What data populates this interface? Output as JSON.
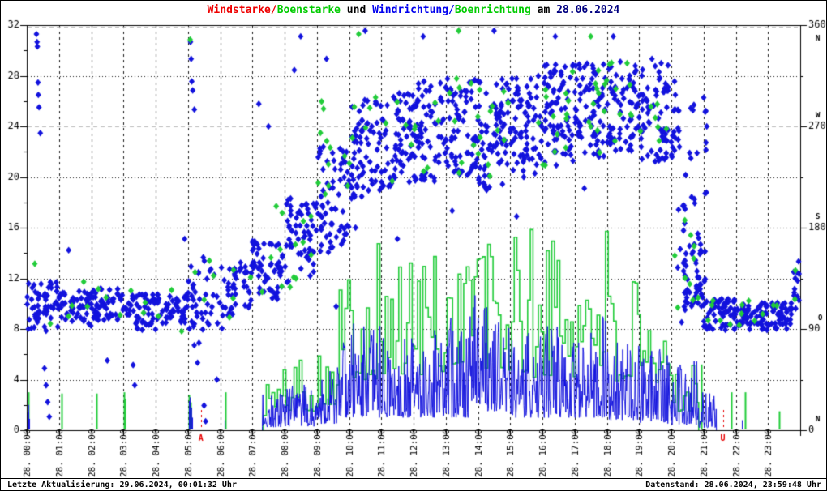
{
  "title": {
    "windstarke": "Windstarke/",
    "boenstarke": "Boenstarke",
    "und": " und ",
    "windrichtung": "Windrichtung/",
    "boenrichtung": "Boenrichtung",
    "am": " am ",
    "date": "28.06.2024"
  },
  "footer": {
    "last_update": "Letzte Aktualisierung: 29.06.2024, 00:01:32 Uhr",
    "data_state": "Datenstand: 28.06.2024, 23:59:48 Uhr"
  },
  "colors": {
    "wind_blue": "#1212dd",
    "gust_green": "#22cc3a",
    "marker_red": "#e60000",
    "title_red": "#ee0000",
    "title_green": "#00cc00",
    "title_blue": "#0000ee",
    "title_date": "#000080",
    "grid_dark": "#1a1a1a",
    "grid_light": "#bbbbbb",
    "frame_black": "#000000"
  },
  "chart_data": {
    "type": "line+scatter",
    "title": "Windstarke/Boenstarke und Windrichtung/Boenrichtung am 28.06.2024",
    "x_axis": {
      "hours": 24,
      "labels": [
        "28. 00:00",
        "28. 01:00",
        "28. 02:00",
        "28. 03:00",
        "28. 04:00",
        "28. 05:00",
        "28. 06:00",
        "28. 07:00",
        "28. 08:00",
        "28. 09:00",
        "28. 10:00",
        "28. 11:00",
        "28. 12:00",
        "28. 13:00",
        "28. 14:00",
        "28. 15:00",
        "28. 16:00",
        "28. 17:00",
        "28. 18:00",
        "28. 19:00",
        "28. 20:00",
        "28. 21:00",
        "28. 22:00",
        "28. 23:00"
      ]
    },
    "y_left": {
      "min": 0,
      "max": 32,
      "ticks": [
        0,
        4,
        8,
        12,
        16,
        20,
        24,
        28,
        32
      ]
    },
    "y_right": {
      "min": 0,
      "max": 360,
      "ticks": [
        0,
        90,
        180,
        270,
        360
      ],
      "letters": [
        "N",
        "O",
        "S",
        "W",
        "N"
      ]
    },
    "sun_markers": [
      {
        "label": "A",
        "hour": 5.4
      },
      {
        "label": "U",
        "hour": 21.6
      }
    ],
    "series": {
      "wind_speed": {
        "name": "Windstarke",
        "style": "spiky-line",
        "segments": [
          [
            7.3,
            8,
            0.2,
            3
          ],
          [
            8,
            9,
            0.3,
            3.6
          ],
          [
            9,
            9.7,
            0.5,
            5
          ],
          [
            9.7,
            10,
            1,
            7
          ],
          [
            10,
            11,
            1,
            8.5
          ],
          [
            11,
            12,
            1,
            7.5
          ],
          [
            12,
            13,
            1,
            8
          ],
          [
            13,
            13.8,
            1,
            9
          ],
          [
            13.8,
            14.3,
            2,
            11
          ],
          [
            14.3,
            15,
            1.5,
            9
          ],
          [
            15,
            16,
            1,
            8
          ],
          [
            16,
            17,
            1,
            8.5
          ],
          [
            17,
            18,
            1,
            9
          ],
          [
            18,
            19,
            0.8,
            7.5
          ],
          [
            19,
            20,
            0.5,
            6.5
          ],
          [
            20,
            20.8,
            0.4,
            5.5
          ],
          [
            20.8,
            21.4,
            0.2,
            3
          ]
        ],
        "impulses": [
          [
            0.02,
            1.4
          ],
          [
            0.04,
            2.0
          ],
          [
            0.07,
            0.9
          ],
          [
            5.02,
            2.3
          ],
          [
            5.06,
            2.6
          ],
          [
            5.1,
            1.8
          ],
          [
            5.13,
            1.0
          ],
          [
            6.15,
            0.8
          ],
          [
            22.18,
            0.8
          ]
        ]
      },
      "gust_speed": {
        "name": "Boenstarke",
        "style": "step-line",
        "segments": [
          [
            7.3,
            8,
            1,
            5
          ],
          [
            8,
            9,
            1.5,
            6.5
          ],
          [
            9,
            9.65,
            2,
            8
          ],
          [
            9.65,
            10,
            4,
            13
          ],
          [
            10,
            11,
            4,
            15.5
          ],
          [
            11,
            12,
            4,
            14
          ],
          [
            12,
            13,
            4,
            16
          ],
          [
            13,
            13.6,
            5,
            16
          ],
          [
            13.6,
            14.1,
            6,
            19.5
          ],
          [
            14.1,
            15,
            4,
            17
          ],
          [
            15,
            16,
            4,
            16
          ],
          [
            16,
            17,
            4,
            17
          ],
          [
            17,
            17.3,
            4,
            14
          ],
          [
            17.3,
            18,
            5,
            19
          ],
          [
            18,
            19,
            3,
            12
          ],
          [
            19,
            19.8,
            2.5,
            8
          ],
          [
            19.8,
            20,
            3,
            9.5
          ],
          [
            20,
            20.85,
            1.5,
            6.5
          ]
        ],
        "impulses": [
          [
            0.05,
            3.0
          ],
          [
            1.08,
            2.9
          ],
          [
            2.17,
            2.9
          ],
          [
            3.02,
            3.0
          ],
          [
            3.05,
            2.5
          ],
          [
            5.03,
            2.8
          ],
          [
            5.08,
            2.2
          ],
          [
            6.17,
            3.0
          ],
          [
            20.93,
            5.2
          ],
          [
            21.85,
            3.0
          ],
          [
            22.28,
            3.0
          ],
          [
            23.35,
            1.5
          ]
        ]
      },
      "wind_dir": {
        "name": "Windrichtung",
        "style": "diamond-scatter",
        "bands": [
          [
            0,
            1,
            110,
            22,
            55
          ],
          [
            1,
            2,
            108,
            16,
            55
          ],
          [
            2,
            3,
            112,
            14,
            55
          ],
          [
            3,
            4,
            105,
            16,
            55
          ],
          [
            4,
            5,
            108,
            13,
            50
          ],
          [
            5,
            5.6,
            115,
            40,
            30
          ],
          [
            5.6,
            6.4,
            118,
            28,
            30
          ],
          [
            6.4,
            7,
            130,
            22,
            30
          ],
          [
            7,
            8,
            142,
            26,
            60
          ],
          [
            8,
            9,
            168,
            38,
            60
          ],
          [
            9,
            10,
            205,
            48,
            65
          ],
          [
            10,
            11,
            250,
            45,
            70
          ],
          [
            11,
            12,
            258,
            42,
            70
          ],
          [
            12,
            13,
            265,
            45,
            75
          ],
          [
            13,
            14,
            268,
            45,
            75
          ],
          [
            14,
            15,
            263,
            50,
            75
          ],
          [
            15,
            16,
            270,
            45,
            75
          ],
          [
            16,
            17,
            280,
            45,
            75
          ],
          [
            17,
            18,
            285,
            42,
            75
          ],
          [
            18,
            19,
            288,
            40,
            70
          ],
          [
            19,
            20,
            282,
            45,
            70
          ],
          [
            20,
            20.3,
            265,
            35,
            15
          ],
          [
            20.2,
            21.1,
            200,
            105,
            45
          ],
          [
            20.4,
            20.95,
            135,
            25,
            35
          ],
          [
            21,
            22,
            103,
            14,
            65
          ],
          [
            22,
            23,
            101,
            12,
            65
          ],
          [
            23,
            23.75,
            102,
            12,
            50
          ],
          [
            23.75,
            24,
            126,
            18,
            12
          ]
        ],
        "outliers": [
          [
            0.3,
            352
          ],
          [
            0.32,
            345
          ],
          [
            0.33,
            341
          ],
          [
            0.35,
            309
          ],
          [
            0.36,
            298
          ],
          [
            0.38,
            287
          ],
          [
            0.42,
            264
          ],
          [
            0.55,
            55
          ],
          [
            0.6,
            40
          ],
          [
            0.65,
            25
          ],
          [
            0.7,
            12
          ],
          [
            1.3,
            160
          ],
          [
            2.5,
            62
          ],
          [
            3.3,
            58
          ],
          [
            3.35,
            40
          ],
          [
            4.9,
            170
          ],
          [
            5.08,
            345
          ],
          [
            5.1,
            330
          ],
          [
            5.12,
            310
          ],
          [
            5.15,
            302
          ],
          [
            5.2,
            285
          ],
          [
            5.3,
            60
          ],
          [
            5.5,
            22
          ],
          [
            5.55,
            8
          ],
          [
            5.9,
            45
          ],
          [
            7.2,
            290
          ],
          [
            7.5,
            270
          ],
          [
            8.3,
            320
          ],
          [
            8.5,
            350
          ],
          [
            9.3,
            330
          ],
          [
            9.6,
            110
          ],
          [
            10.2,
            180
          ],
          [
            10.5,
            355
          ],
          [
            11.5,
            170
          ],
          [
            12.3,
            350
          ],
          [
            13.2,
            195
          ],
          [
            14.5,
            355
          ],
          [
            15.2,
            190
          ],
          [
            16.4,
            350
          ],
          [
            17.3,
            215
          ],
          [
            18.2,
            350
          ],
          [
            19.4,
            330
          ],
          [
            20.1,
            310
          ],
          [
            21.05,
            283
          ],
          [
            21.1,
            270
          ],
          [
            23.9,
            140
          ],
          [
            23.95,
            150
          ]
        ]
      },
      "gust_dir": {
        "name": "Boenrichtung",
        "style": "diamond-scatter",
        "bands": [
          [
            0,
            5,
            112,
            25,
            14
          ],
          [
            5,
            7,
            122,
            30,
            8
          ],
          [
            7,
            9,
            162,
            40,
            14
          ],
          [
            9,
            12,
            252,
            45,
            22
          ],
          [
            12,
            15,
            268,
            45,
            26
          ],
          [
            15,
            18,
            280,
            45,
            26
          ],
          [
            18,
            20,
            282,
            45,
            16
          ],
          [
            20,
            21,
            150,
            45,
            10
          ],
          [
            21,
            24,
            104,
            14,
            14
          ]
        ],
        "outliers": [
          [
            0.25,
            148
          ],
          [
            5.07,
            347
          ],
          [
            10.3,
            352
          ],
          [
            13.4,
            355
          ],
          [
            17.5,
            350
          ],
          [
            23.85,
            142
          ]
        ]
      }
    }
  }
}
